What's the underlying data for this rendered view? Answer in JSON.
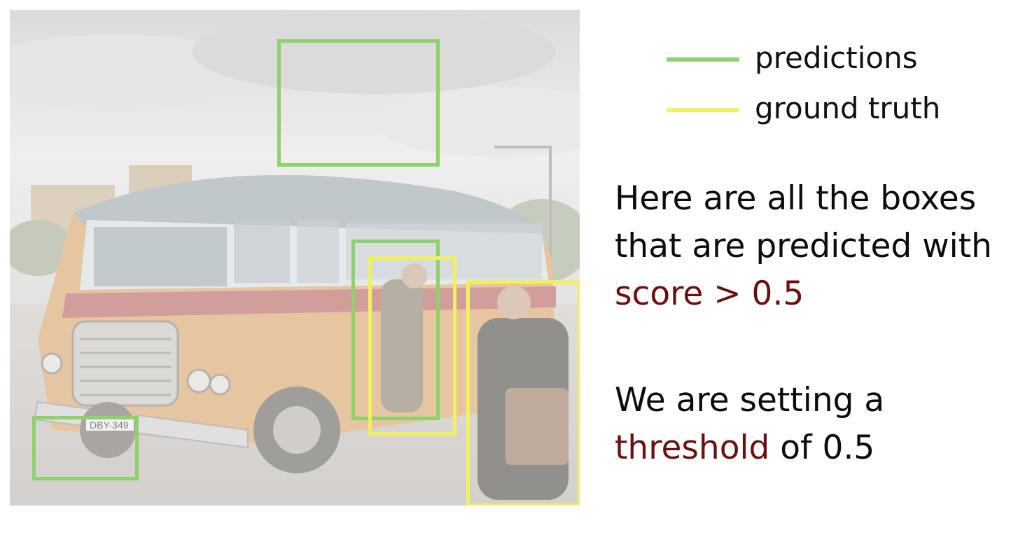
{
  "colors": {
    "predictions": "#8fd16a",
    "ground_truth": "#f0f060",
    "accent": "#6b1010"
  },
  "legend": {
    "items": [
      {
        "label": "predictions",
        "kind": "predictions"
      },
      {
        "label": "ground truth",
        "kind": "ground_truth"
      }
    ]
  },
  "text": {
    "para1_line1": "Here are all the boxes",
    "para1_line2": "that are predicted with",
    "para1_highlight": "score > 0.5",
    "para2_line1": "We are setting a",
    "para2_highlight": "threshold",
    "para2_suffix": " of 0.5"
  },
  "photo": {
    "plate_text": "DBY-349"
  }
}
